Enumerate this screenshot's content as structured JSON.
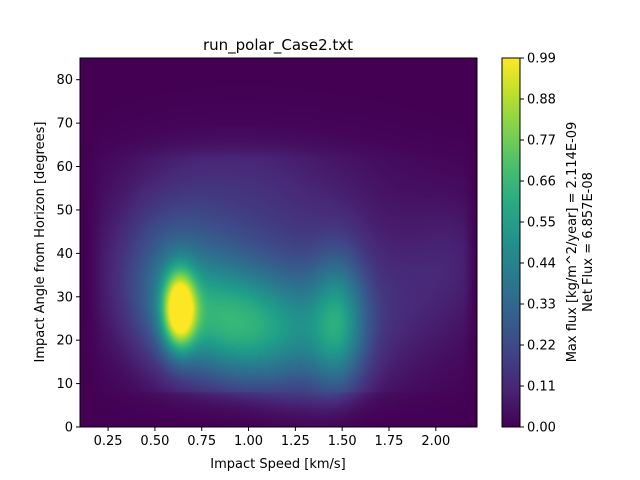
{
  "chart_data": {
    "type": "heatmap",
    "title": "run_polar_Case2.txt",
    "xlabel": "Impact Speed [km/s]",
    "ylabel": "Impact Angle from Horizon [degrees]",
    "xlim": [
      0.1,
      2.22
    ],
    "ylim": [
      0,
      85
    ],
    "x_ticks": [
      "0.25",
      "0.50",
      "0.75",
      "1.00",
      "1.25",
      "1.50",
      "1.75",
      "2.00"
    ],
    "x_tick_values": [
      0.25,
      0.5,
      0.75,
      1.0,
      1.25,
      1.5,
      1.75,
      2.0
    ],
    "y_ticks": [
      "0",
      "10",
      "20",
      "30",
      "40",
      "50",
      "60",
      "70",
      "80"
    ],
    "y_tick_values": [
      0,
      10,
      20,
      30,
      40,
      50,
      60,
      70,
      80
    ],
    "colormap": "viridis",
    "colorbar": {
      "range": [
        0.0,
        0.99
      ],
      "ticks": [
        "0.00",
        "0.11",
        "0.22",
        "0.33",
        "0.44",
        "0.55",
        "0.66",
        "0.77",
        "0.88",
        "0.99"
      ],
      "tick_values": [
        0.0,
        0.11,
        0.22,
        0.33,
        0.44,
        0.55,
        0.66,
        0.77,
        0.88,
        0.99
      ],
      "label_line1": "Max flux [kg/m^2/year] = 2.114E-09",
      "label_line2": "Net Flux = 6.857E-08"
    },
    "features": [
      {
        "x": 0.63,
        "y": 27,
        "peak": 0.99
      },
      {
        "x": 1.0,
        "y": 22,
        "peak": 0.45
      },
      {
        "x": 1.5,
        "y": 24,
        "peak": 0.5
      }
    ],
    "grid": false
  }
}
